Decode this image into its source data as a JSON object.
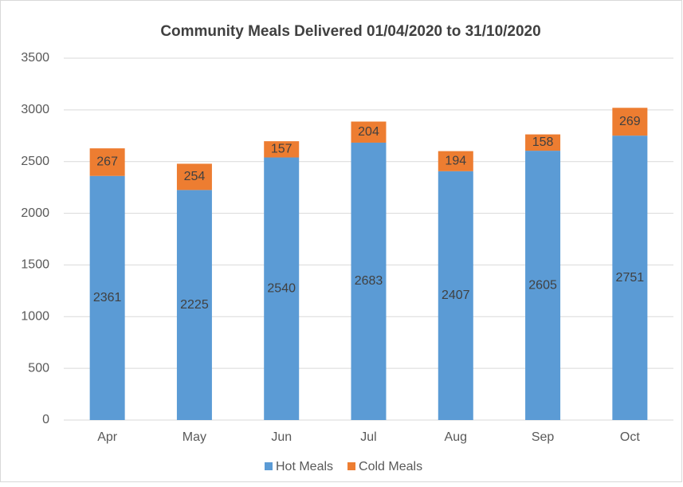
{
  "chart_data": {
    "type": "bar",
    "stacked": true,
    "title": "Community Meals Delivered 01/04/2020 to 31/10/2020",
    "categories": [
      "Apr",
      "May",
      "Jun",
      "Jul",
      "Aug",
      "Sep",
      "Oct"
    ],
    "series": [
      {
        "name": "Hot Meals",
        "color": "#5b9bd5",
        "values": [
          2361,
          2225,
          2540,
          2683,
          2407,
          2605,
          2751
        ]
      },
      {
        "name": "Cold Meals",
        "color": "#ed7d31",
        "values": [
          267,
          254,
          157,
          204,
          194,
          158,
          269
        ]
      }
    ],
    "ylim": [
      0,
      3500
    ],
    "yticks": [
      0,
      500,
      1000,
      1500,
      2000,
      2500,
      3000,
      3500
    ],
    "grid": true,
    "legend": "bottom"
  }
}
